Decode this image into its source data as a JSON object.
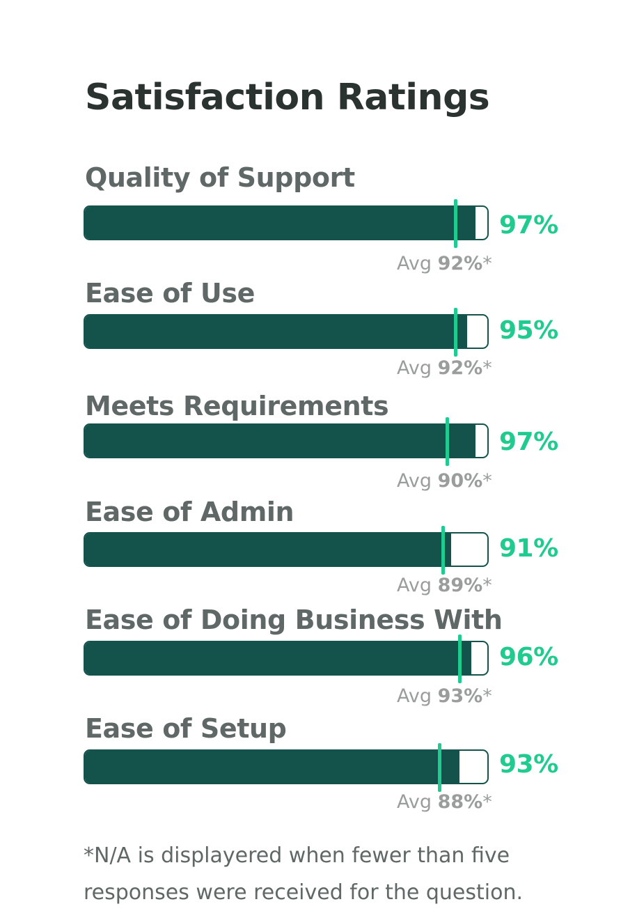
{
  "title": "Satisfaction Ratings",
  "avg_prefix": "Avg",
  "avg_suffix": "*",
  "footnote": "*N/A is displayered when fewer than five responses were received for the question.",
  "colors": {
    "bar_fill": "#13534c",
    "accent": "#1fcb8f",
    "label": "#5f6866",
    "title": "#2b3331",
    "muted": "#9a9d9c"
  },
  "chart_data": {
    "type": "bar",
    "title": "Satisfaction Ratings",
    "unit": "%",
    "xlim": [
      0,
      100
    ],
    "categories": [
      "Quality of Support",
      "Ease of Use",
      "Meets Requirements",
      "Ease of Admin",
      "Ease of Doing Business With",
      "Ease of Setup"
    ],
    "values": [
      97,
      95,
      97,
      91,
      96,
      93
    ],
    "averages": [
      92,
      92,
      90,
      89,
      93,
      88
    ],
    "value_labels": [
      "97%",
      "95%",
      "97%",
      "91%",
      "96%",
      "93%"
    ],
    "average_labels": [
      "92%",
      "92%",
      "90%",
      "89%",
      "93%",
      "88%"
    ]
  }
}
